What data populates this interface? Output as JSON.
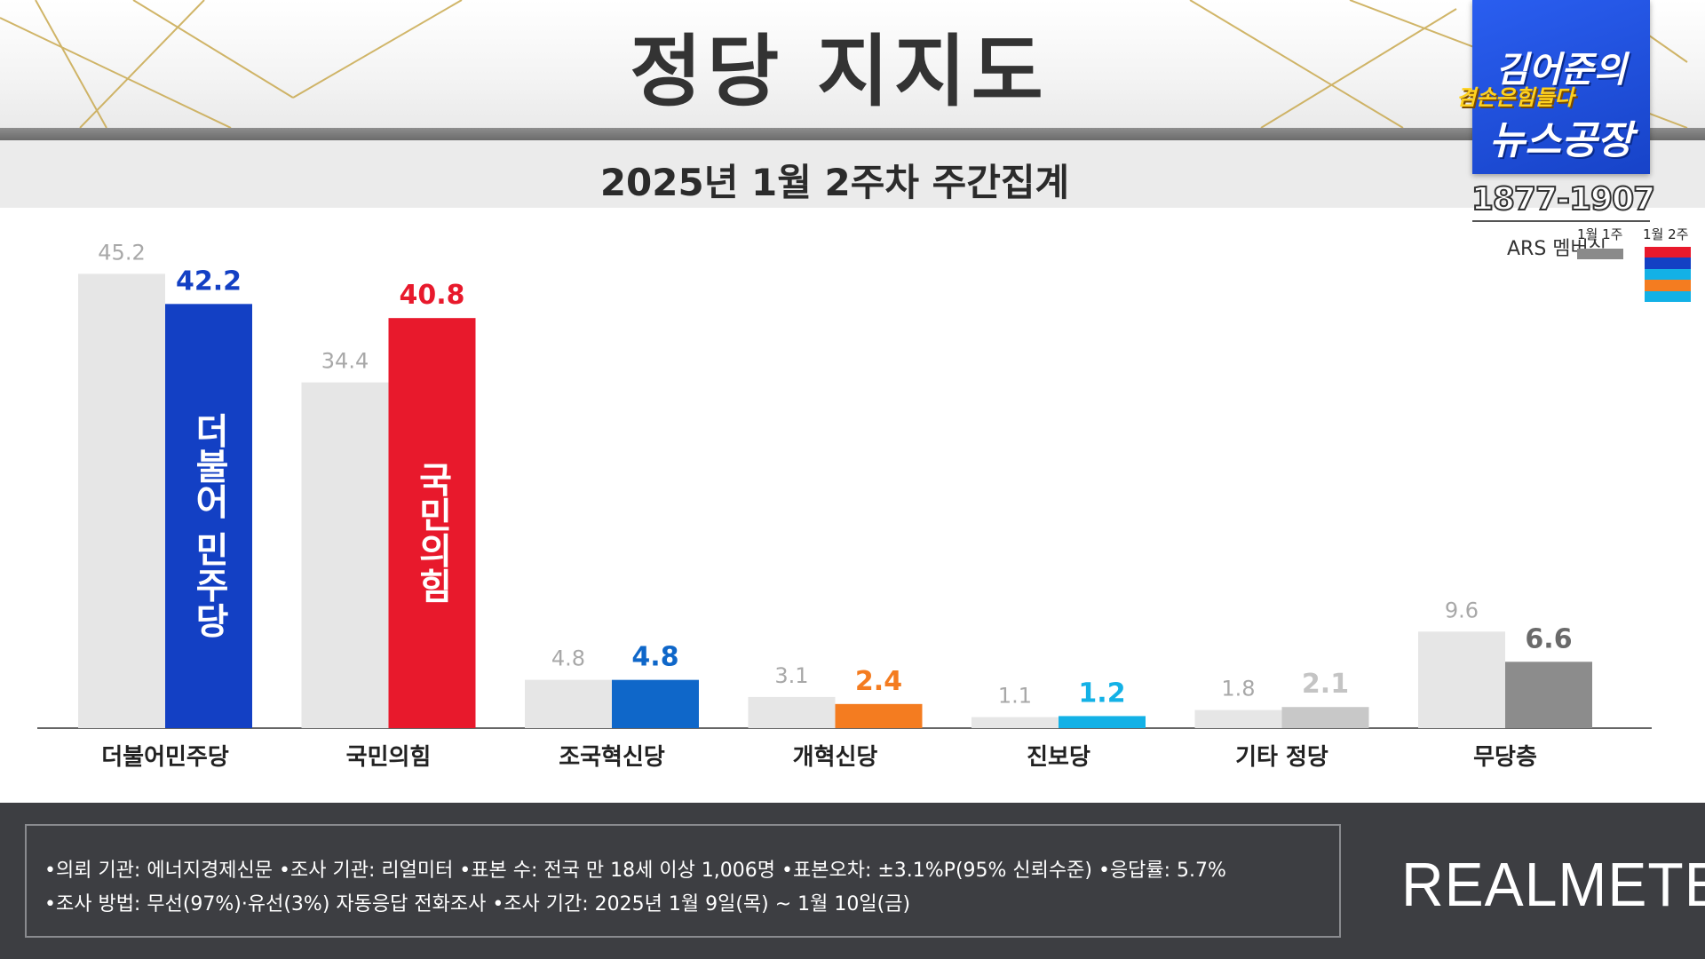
{
  "header": {
    "title": "정당 지지도",
    "subtitle": "2025년 1월 2주차 주간집계"
  },
  "logo": {
    "line1": "김어준의",
    "slogan": "겸손은힘들다",
    "line2": "뉴스공장",
    "phone": "1877-1907",
    "ars": "ARS 멤버십"
  },
  "legend": {
    "week1": "1월 1주",
    "week2": "1월 2주"
  },
  "chart_data": {
    "type": "bar",
    "categories": [
      "더불어민주당",
      "국민의힘",
      "조국혁신당",
      "개혁신당",
      "진보당",
      "기타 정당",
      "무당층"
    ],
    "series": [
      {
        "name": "1월 1주",
        "values": [
          45.2,
          34.4,
          4.8,
          3.1,
          1.1,
          1.8,
          9.6
        ],
        "color": "#e6e6e6",
        "label_color": "#a8a8a8"
      },
      {
        "name": "1월 2주",
        "values": [
          42.2,
          40.8,
          4.8,
          2.4,
          1.2,
          2.1,
          6.6
        ],
        "colors": [
          "#1340c4",
          "#e8192c",
          "#0f67c9",
          "#f47c20",
          "#13b1e6",
          "#c8c8c8",
          "#8c8c8c"
        ],
        "label_colors": [
          "#1340c4",
          "#e8192c",
          "#0f67c9",
          "#f47c20",
          "#13b1e6",
          "#c4c4c4",
          "#6a6a6a"
        ]
      }
    ],
    "bar_marks": [
      "더불어 민주당",
      "국민의힘"
    ],
    "ylim": [
      0,
      47
    ],
    "grid": false
  },
  "footer": {
    "note1": "•의뢰 기관: 에너지경제신문   •조사 기관: 리얼미터 •표본 수: 전국 만 18세 이상 1,006명 •표본오차: ±3.1%P(95% 신뢰수준) •응답률: 5.7%",
    "note2": "•조사 방법: 무선(97%)·유선(3%) 자동응답 전화조사 •조사 기간: 2025년 1월 9일(목) ~ 1월 10일(금)",
    "brand": "REALMETER"
  }
}
